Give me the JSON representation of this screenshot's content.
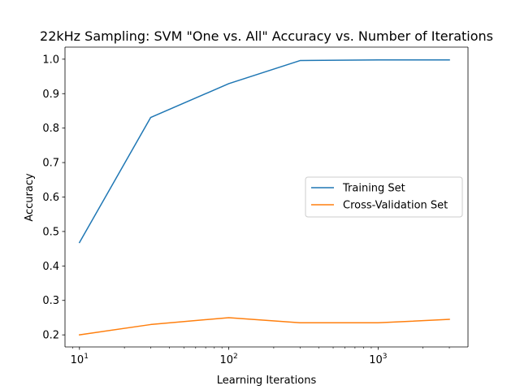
{
  "chart_data": {
    "type": "line",
    "title": "22kHz Sampling: SVM \"One vs. All\" Accuracy vs. Number of Iterations",
    "xlabel": "Learning Iterations",
    "ylabel": "Accuracy",
    "xscale": "log",
    "xlim": [
      8,
      4000
    ],
    "ylim": [
      0.165,
      1.035
    ],
    "x_tick_labels": [
      {
        "value": 10,
        "base": "10",
        "exp": "1"
      },
      {
        "value": 100,
        "base": "10",
        "exp": "2"
      },
      {
        "value": 1000,
        "base": "10",
        "exp": "3"
      }
    ],
    "y_ticks": [
      0.2,
      0.3,
      0.4,
      0.5,
      0.6,
      0.7,
      0.8,
      0.9,
      1.0
    ],
    "y_tick_labels": [
      "0.2",
      "0.3",
      "0.4",
      "0.5",
      "0.6",
      "0.7",
      "0.8",
      "0.9",
      "1.0"
    ],
    "grid": false,
    "legend_position": "center-right",
    "series": [
      {
        "name": "Training Set",
        "color": "#1f77b4",
        "x": [
          10,
          30,
          100,
          300,
          1000,
          3000
        ],
        "values": [
          0.468,
          0.831,
          0.929,
          0.996,
          0.998,
          0.998
        ]
      },
      {
        "name": "Cross-Validation Set",
        "color": "#ff7f0e",
        "x": [
          10,
          30,
          100,
          300,
          1000,
          3000
        ],
        "values": [
          0.2,
          0.23,
          0.25,
          0.235,
          0.235,
          0.245
        ]
      }
    ]
  }
}
